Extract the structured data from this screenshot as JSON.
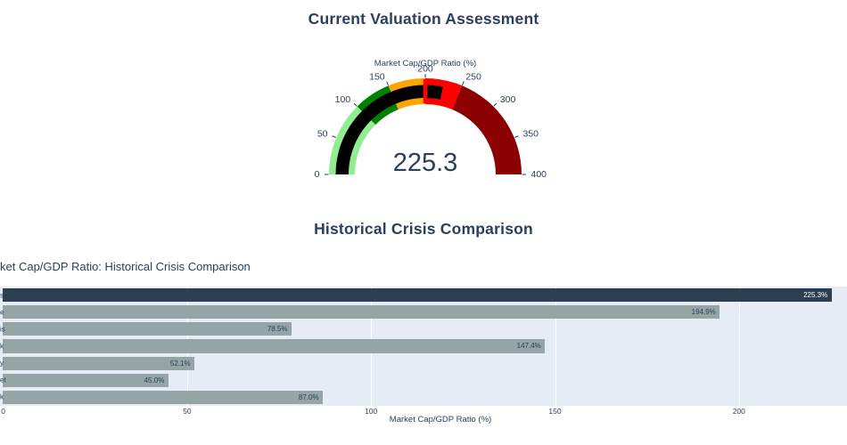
{
  "sections": {
    "valuation_title": "Current Valuation Assessment",
    "crisis_title": "Historical Crisis Comparison"
  },
  "colors": {
    "text": "#2a3f5f",
    "plot_bg": "#E5ECF6",
    "grid": "#ffffff",
    "bar_current": "#2C3E50",
    "bar_historical": "#95A5A6",
    "bar_label_on_dark": "#ffffff"
  },
  "chart_data": [
    {
      "type": "gauge",
      "title": "Market Cap/GDP Ratio (%)",
      "value": 225.3,
      "value_display": "225.3",
      "axis_range": [
        0,
        400
      ],
      "ticks": [
        0,
        50,
        100,
        150,
        200,
        250,
        300,
        350,
        400
      ],
      "bar_color": "#000000",
      "threshold": {
        "value": 200,
        "color": "#FF0000"
      },
      "steps": [
        {
          "range": [
            0,
            100
          ],
          "color": "#90EE90"
        },
        {
          "range": [
            100,
            150
          ],
          "color": "#008000"
        },
        {
          "range": [
            150,
            200
          ],
          "color": "#FFA500"
        },
        {
          "range": [
            200,
            250
          ],
          "color": "#FF0000"
        },
        {
          "range": [
            250,
            400
          ],
          "color": "#8B0000"
        }
      ]
    },
    {
      "type": "bar",
      "orientation": "horizontal",
      "title_visible": "ket Cap/GDP Ratio: Historical Crisis Comparison",
      "xlabel": "Market Cap/GDP Ratio (%)",
      "x_ticks": [
        0,
        50,
        100,
        150,
        200
      ],
      "x_range_visible": [
        0,
        229.4
      ],
      "values": [
        225.3,
        194.9,
        78.5,
        147.4,
        52.1,
        45.0,
        87.0
      ],
      "value_labels": [
        "225.3%",
        "194.9%",
        "78.5%",
        "147.4%",
        "52.1%",
        "45.0%",
        "87.0%"
      ],
      "category_label_fragments": [
        "s)",
        "e",
        "is",
        "k",
        "y",
        "et",
        "k"
      ],
      "highlight_index": 0,
      "legend": "none",
      "grid": "vertical-white"
    }
  ]
}
